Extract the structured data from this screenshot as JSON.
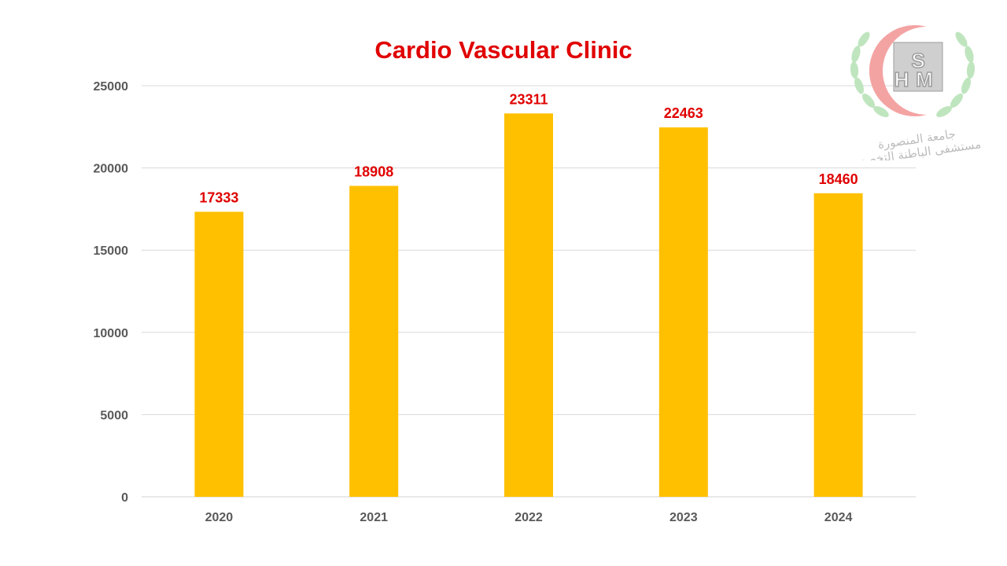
{
  "chart_data": {
    "type": "bar",
    "title": "Cardio Vascular Clinic",
    "categories": [
      "2020",
      "2021",
      "2022",
      "2023",
      "2024"
    ],
    "values": [
      17333,
      18908,
      23311,
      22463,
      18460
    ],
    "ylim": [
      0,
      25000
    ],
    "yticks": [
      "0",
      "5000",
      "10000",
      "15000",
      "20000",
      "25000"
    ],
    "xlabel": "",
    "ylabel": "",
    "grid": true,
    "bar_color": "#FFC000",
    "label_color": "#E00000",
    "title_color": "#E00000"
  },
  "logo": {
    "line1": "جامعة المنصورة",
    "line2": "مستشفى الباطنة التخصصي",
    "letters": [
      "H",
      "S",
      "M"
    ]
  }
}
